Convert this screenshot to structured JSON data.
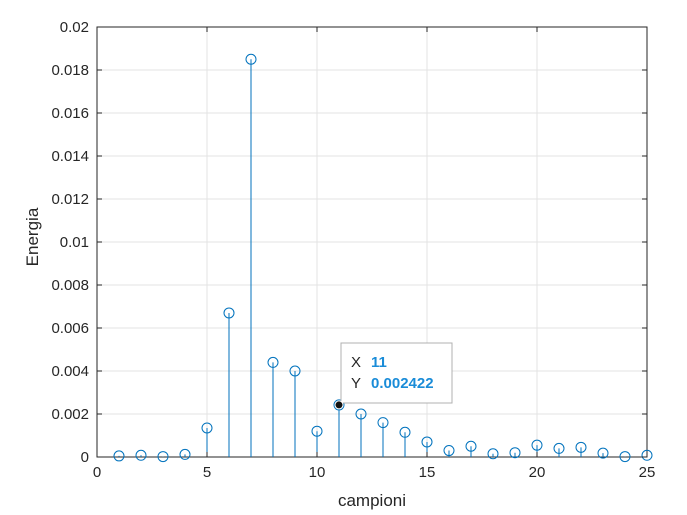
{
  "chart_data": {
    "type": "stem",
    "xlabel": "campioni",
    "ylabel": "Energia",
    "xlim": [
      0,
      25
    ],
    "ylim": [
      0,
      0.02
    ],
    "xticks": [
      "0",
      "5",
      "10",
      "15",
      "20",
      "25"
    ],
    "yticks": [
      "0",
      "0.002",
      "0.004",
      "0.006",
      "0.008",
      "0.01",
      "0.012",
      "0.014",
      "0.016",
      "0.018",
      "0.02"
    ],
    "grid": true,
    "series": [
      {
        "color": "#0072bd",
        "marker": "circle",
        "x": [
          1,
          2,
          3,
          4,
          5,
          6,
          7,
          8,
          9,
          10,
          11,
          12,
          13,
          14,
          15,
          16,
          17,
          18,
          19,
          20,
          21,
          22,
          23,
          24,
          25
        ],
        "values": [
          5e-05,
          8e-05,
          2e-05,
          0.00012,
          0.00135,
          0.0067,
          0.0185,
          0.0044,
          0.004,
          0.0012,
          0.002422,
          0.002,
          0.0016,
          0.00115,
          0.0007,
          0.0003,
          0.0005,
          0.00015,
          0.0002,
          0.00055,
          0.0004,
          0.00045,
          0.00018,
          2e-05,
          8e-05
        ]
      }
    ],
    "datatip": {
      "x_label": "X",
      "x_value": "11",
      "y_label": "Y",
      "y_value": "0.002422",
      "point_x": 11,
      "point_y": 0.002422
    }
  }
}
